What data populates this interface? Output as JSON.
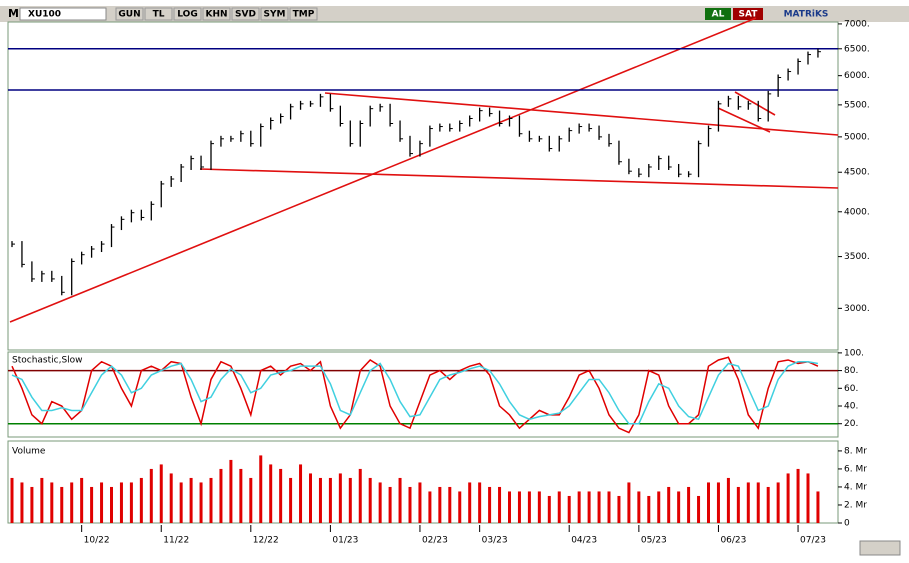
{
  "toolbar": {
    "symbol_prefix": "M",
    "symbol": "XU100",
    "buttons": [
      "GUN",
      "TL",
      "LOG",
      "KHN",
      "SVD",
      "SYM",
      "TMP"
    ],
    "buy": "AL",
    "sell": "SAT",
    "brand": "MATRiKS"
  },
  "chart_data": [
    {
      "type": "ohlc-close",
      "log_scale": true,
      "color": "#000000",
      "categories": [
        null,
        null,
        null,
        null,
        null,
        null,
        null,
        "10/22",
        null,
        null,
        null,
        null,
        null,
        null,
        null,
        "11/22",
        null,
        null,
        null,
        null,
        null,
        null,
        null,
        null,
        "12/22",
        null,
        null,
        null,
        null,
        null,
        null,
        null,
        "01/23",
        null,
        null,
        null,
        null,
        null,
        null,
        null,
        null,
        "02/23",
        null,
        null,
        null,
        null,
        null,
        "03/23",
        null,
        null,
        null,
        null,
        null,
        null,
        null,
        null,
        "04/23",
        null,
        null,
        null,
        null,
        null,
        null,
        "05/23",
        null,
        null,
        null,
        null,
        null,
        null,
        null,
        "06/23",
        null,
        null,
        null,
        null,
        null,
        null,
        null,
        "07/23",
        null,
        null
      ],
      "values": [
        3633,
        3420,
        3275,
        3325,
        3275,
        3147,
        3450,
        3520,
        3580,
        3633,
        3822,
        3911,
        3989,
        3933,
        4090,
        4346,
        4410,
        4571,
        4686,
        4571,
        4900,
        4971,
        4971,
        5047,
        4900,
        5156,
        5250,
        5313,
        5469,
        5517,
        5517,
        5633,
        5438,
        5203,
        4900,
        5203,
        5438,
        5469,
        5203,
        4971,
        4757,
        4900,
        5125,
        5156,
        5125,
        5203,
        5281,
        5406,
        5359,
        5203,
        5281,
        5047,
        4971,
        4971,
        4829,
        4971,
        5094,
        5156,
        5125,
        5000,
        4900,
        4643,
        4514,
        4474,
        4571,
        4686,
        4571,
        4474,
        4474,
        4900,
        5125,
        5517,
        5600,
        5469,
        5517,
        5281,
        5683,
        5967,
        6074,
        6259,
        6389,
        6444
      ],
      "ylim": [
        2650,
        7040
      ],
      "yticks": [
        {
          "value": 7000,
          "label": "7000."
        },
        {
          "value": 6500,
          "label": "6500."
        },
        {
          "value": 6000,
          "label": "6000."
        },
        {
          "value": 5500,
          "label": "5500."
        },
        {
          "value": 5000,
          "label": "5000."
        },
        {
          "value": 4500,
          "label": "4500."
        },
        {
          "value": 4000,
          "label": "4000."
        },
        {
          "value": 3500,
          "label": "3500."
        },
        {
          "value": 3000,
          "label": "3000."
        }
      ],
      "reference_lines": [
        {
          "value": 6500,
          "color": "#000080"
        },
        {
          "value": 5750,
          "color": "#000080"
        }
      ]
    },
    {
      "type": "line",
      "title": "Stochastic,Slow",
      "series": [
        {
          "color": "#e00000",
          "values": [
            85,
            60,
            30,
            20,
            45,
            40,
            25,
            35,
            80,
            90,
            85,
            60,
            40,
            80,
            85,
            80,
            90,
            88,
            50,
            20,
            70,
            90,
            85,
            60,
            30,
            80,
            85,
            75,
            85,
            88,
            80,
            90,
            40,
            15,
            30,
            80,
            92,
            85,
            40,
            20,
            15,
            45,
            75,
            80,
            70,
            80,
            85,
            88,
            75,
            40,
            30,
            15,
            25,
            35,
            30,
            30,
            50,
            75,
            80,
            60,
            30,
            15,
            10,
            30,
            80,
            75,
            40,
            20,
            20,
            30,
            85,
            92,
            95,
            70,
            30,
            15,
            60,
            90,
            92,
            88,
            90,
            85
          ]
        },
        {
          "color": "#40d0e0",
          "values": [
            75,
            70,
            50,
            35,
            35,
            38,
            35,
            35,
            55,
            75,
            85,
            75,
            55,
            60,
            75,
            80,
            85,
            88,
            70,
            45,
            50,
            70,
            82,
            75,
            55,
            60,
            75,
            78,
            80,
            85,
            85,
            85,
            65,
            35,
            30,
            55,
            80,
            88,
            70,
            45,
            28,
            30,
            50,
            70,
            75,
            78,
            82,
            85,
            80,
            65,
            45,
            30,
            25,
            28,
            30,
            32,
            40,
            55,
            70,
            70,
            55,
            35,
            20,
            20,
            45,
            65,
            60,
            40,
            28,
            25,
            50,
            75,
            88,
            85,
            60,
            35,
            40,
            70,
            85,
            90,
            90,
            88
          ]
        }
      ],
      "ylim": [
        5,
        101
      ],
      "yticks": [
        {
          "value": 100,
          "label": "100."
        },
        {
          "value": 80,
          "label": "80."
        },
        {
          "value": 60,
          "label": "60."
        },
        {
          "value": 40,
          "label": "40."
        },
        {
          "value": 20,
          "label": "20."
        }
      ],
      "reference_lines": [
        {
          "value": 80,
          "color": "#800000"
        },
        {
          "value": 20,
          "color": "#008000"
        }
      ]
    },
    {
      "type": "bar",
      "title": "Volume",
      "color": "#e00000",
      "values": [
        5,
        4.5,
        4,
        5,
        4.5,
        4,
        4.5,
        5,
        4,
        4.5,
        4,
        4.5,
        4.5,
        5,
        6,
        6.5,
        5.5,
        4.5,
        5,
        4.5,
        5,
        6,
        7,
        6,
        5,
        7.5,
        6.5,
        6,
        5,
        6.5,
        5.5,
        5,
        5,
        5.5,
        5,
        6,
        5,
        4.5,
        4,
        5,
        4,
        4.5,
        3.5,
        4,
        4,
        3.5,
        4.5,
        4.5,
        4,
        4,
        3.5,
        3.5,
        3.5,
        3.5,
        3,
        3.5,
        3,
        3.5,
        3.5,
        3.5,
        3.5,
        3,
        4.5,
        3.5,
        3,
        3.5,
        4,
        3.5,
        4,
        3,
        4.5,
        4.5,
        5,
        4,
        4.5,
        4.5,
        4,
        4.5,
        5.5,
        6,
        5.5,
        3.5
      ],
      "ylim": [
        0,
        9.1
      ],
      "yticks": [
        {
          "value": 8,
          "label": "8. Mr"
        },
        {
          "value": 6,
          "label": "6. Mr"
        },
        {
          "value": 4,
          "label": "4. Mr"
        },
        {
          "value": 2,
          "label": "2. Mr"
        },
        0
      ]
    }
  ]
}
